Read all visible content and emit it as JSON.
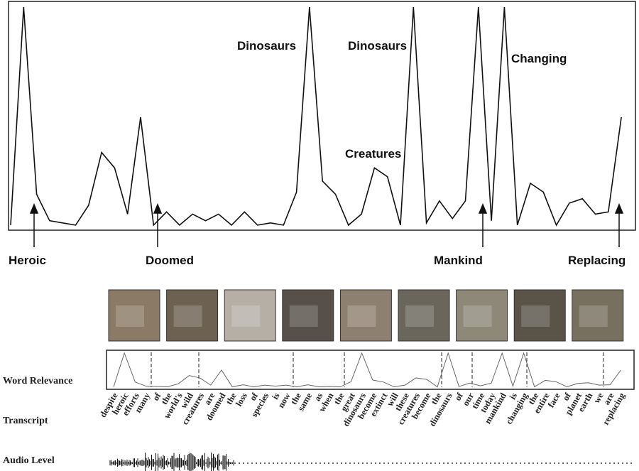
{
  "top_chart": {
    "type": "line",
    "values": [
      1,
      100,
      15,
      3,
      2,
      1,
      10,
      34,
      27,
      6,
      50,
      1,
      7,
      1,
      6,
      3,
      6,
      1,
      7,
      1,
      2,
      1,
      16,
      100,
      21,
      15,
      1,
      6,
      27,
      23,
      1,
      100,
      2,
      12,
      4,
      12,
      100,
      3,
      100,
      1,
      20,
      16,
      1,
      11,
      13,
      6,
      7,
      50
    ],
    "labels_above": [
      "Dinosaurs",
      "Dinosaurs",
      "Creatures",
      "Changing"
    ],
    "labels_below": [
      "Heroic",
      "Doomed",
      "Mankind",
      "Replacing"
    ]
  },
  "panel": {
    "row_labels": [
      "Word Relevance",
      "Transcript",
      "Audio Level"
    ],
    "transcript": [
      "despite",
      "heroic",
      "efforts",
      "many",
      "of",
      "the",
      "world's",
      "wild",
      "creatures",
      "are",
      "doomed",
      "the",
      "loss",
      "of",
      "species",
      "is",
      "now",
      "the",
      "same",
      "as",
      "when",
      "the",
      "great",
      "dinosaurs",
      "become",
      "extinct",
      "will",
      "these",
      "creatures",
      "become",
      "the",
      "dinosaurs",
      "of",
      "our",
      "time",
      "today",
      "mankind",
      "is",
      "changing",
      "the",
      "entire",
      "face",
      "of",
      "planet",
      "earth",
      "we",
      "are",
      "replacing"
    ]
  }
}
